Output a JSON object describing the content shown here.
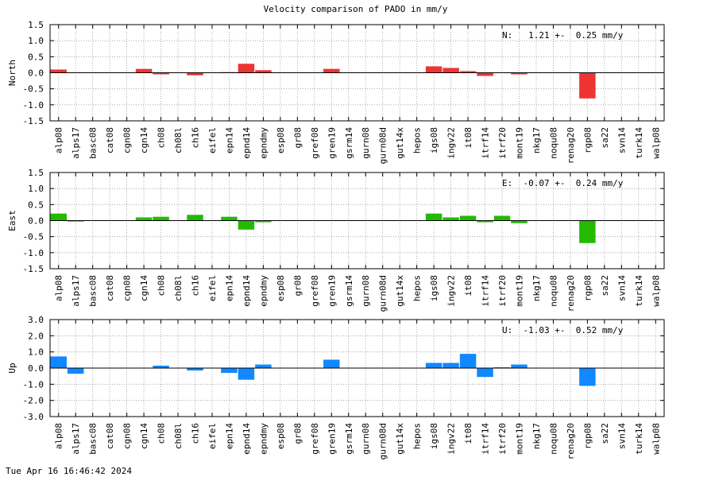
{
  "title": "Velocity comparison of PADO in mm/y",
  "timestamp": "Tue Apr 16 16:46:42 2024",
  "colors": {
    "North": "#ee3333",
    "East": "#22bb00",
    "Up": "#1188ff"
  },
  "chart_data": [
    {
      "type": "bar",
      "ylabel": "North",
      "ylim": [
        -1.5,
        1.5
      ],
      "yticks": [
        "1.5",
        "1.0",
        "0.5",
        "0.0",
        "-0.5",
        "-1.0",
        "-1.5"
      ],
      "grid": true,
      "stat": "N:   1.21 +-  0.25 mm/y",
      "categories": [
        "alp08",
        "alps17",
        "basc08",
        "cat08",
        "cgn08",
        "cgn14",
        "ch08",
        "ch08l",
        "ch16",
        "eifel",
        "epn14",
        "epnd14",
        "epndmy",
        "esp08",
        "gr08",
        "gref08",
        "gren19",
        "gsrm14",
        "gurn08",
        "gurn08d",
        "gut14x",
        "hepos",
        "igs08",
        "ingv22",
        "it08",
        "itrf14",
        "itrf20",
        "mont19",
        "nkg17",
        "noqu08",
        "renag20",
        "rgp08",
        "sa22",
        "svn14",
        "turk14",
        "walp08"
      ],
      "values": [
        0.1,
        0,
        0,
        0,
        0,
        0.12,
        -0.05,
        0,
        -0.08,
        0,
        0.02,
        0.28,
        0.08,
        0,
        0,
        0,
        0.12,
        0,
        0,
        0,
        0,
        0,
        0.2,
        0.15,
        0.05,
        -0.1,
        0,
        -0.05,
        0,
        0,
        0,
        -0.8,
        0,
        0,
        0,
        0
      ]
    },
    {
      "type": "bar",
      "ylabel": "East",
      "ylim": [
        -1.5,
        1.5
      ],
      "yticks": [
        "1.5",
        "1.0",
        "0.5",
        "0.0",
        "-0.5",
        "-1.0",
        "-1.5"
      ],
      "grid": true,
      "stat": "E:  -0.07 +-  0.24 mm/y",
      "categories": [
        "alp08",
        "alps17",
        "basc08",
        "cat08",
        "cgn08",
        "cgn14",
        "ch08",
        "ch08l",
        "ch16",
        "eifel",
        "epn14",
        "epnd14",
        "epndmy",
        "esp08",
        "gr08",
        "gref08",
        "gren19",
        "gsrm14",
        "gurn08",
        "gurn08d",
        "gut14x",
        "hepos",
        "igs08",
        "ingv22",
        "it08",
        "itrf14",
        "itrf20",
        "mont19",
        "nkg17",
        "noqu08",
        "renag20",
        "rgp08",
        "sa22",
        "svn14",
        "turk14",
        "walp08"
      ],
      "values": [
        0.22,
        -0.03,
        0,
        0,
        0,
        0.1,
        0.12,
        0,
        0.18,
        0,
        0.12,
        -0.28,
        -0.05,
        0,
        0,
        0,
        0,
        0,
        0,
        0,
        0,
        0,
        0.22,
        0.1,
        0.15,
        -0.05,
        0.15,
        -0.08,
        0,
        0,
        0,
        -0.7,
        0,
        0,
        0,
        0
      ]
    },
    {
      "type": "bar",
      "ylabel": "Up",
      "ylim": [
        -3.0,
        3.0
      ],
      "yticks": [
        "3.0",
        "2.0",
        "1.0",
        "0.0",
        "-1.0",
        "-2.0",
        "-3.0"
      ],
      "grid": true,
      "stat": "U:  -1.03 +-  0.52 mm/y",
      "categories": [
        "alp08",
        "alps17",
        "basc08",
        "cat08",
        "cgn08",
        "cgn14",
        "ch08",
        "ch08l",
        "ch16",
        "eifel",
        "epn14",
        "epnd14",
        "epndmy",
        "esp08",
        "gr08",
        "gref08",
        "gren19",
        "gsrm14",
        "gurn08",
        "gurn08d",
        "gut14x",
        "hepos",
        "igs08",
        "ingv22",
        "it08",
        "itrf14",
        "itrf20",
        "mont19",
        "nkg17",
        "noqu08",
        "renag20",
        "rgp08",
        "sa22",
        "svn14",
        "turk14",
        "walp08"
      ],
      "values": [
        0.72,
        -0.35,
        0,
        0,
        0,
        0,
        0.15,
        0,
        -0.15,
        0,
        -0.3,
        -0.72,
        0.22,
        0,
        0,
        0,
        0.52,
        0,
        0,
        0,
        0,
        0,
        0.32,
        0.32,
        0.88,
        -0.55,
        0.05,
        0.22,
        0,
        0,
        0,
        -1.1,
        0,
        0,
        0,
        0
      ]
    }
  ]
}
